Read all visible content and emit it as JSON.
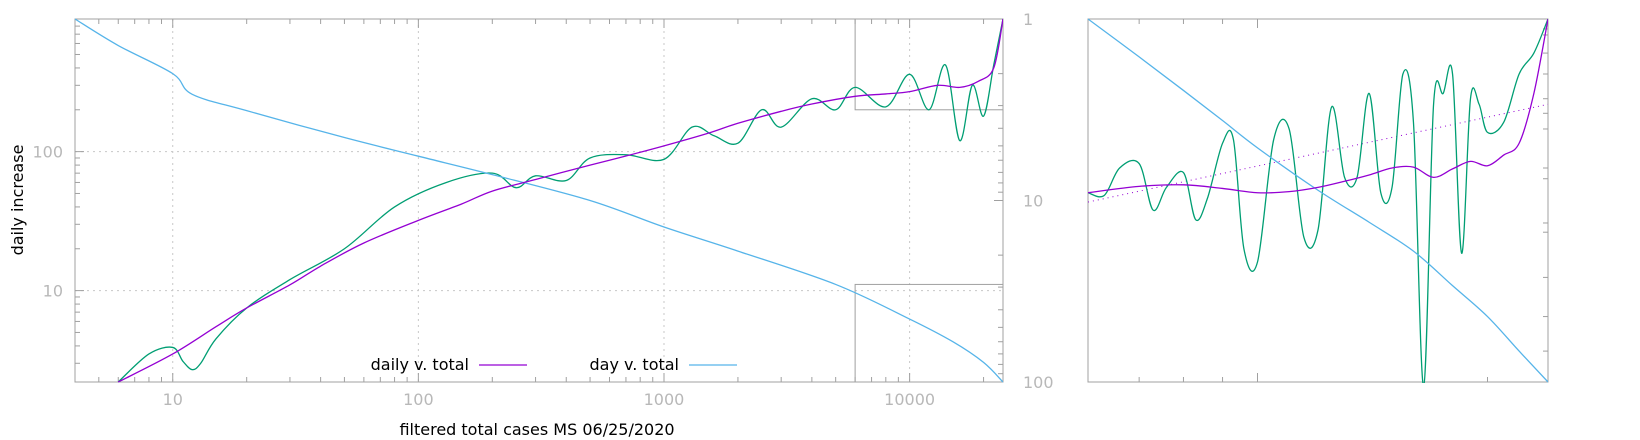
{
  "chart_data": [
    {
      "type": "line",
      "panel": "main",
      "xlabel": "filtered total cases MS 06/25/2020",
      "ylabel": "daily increase",
      "x_scale": "log",
      "y_scale": "log",
      "y2_scale": "log",
      "y2_reversed": true,
      "xlim": [
        4,
        24000
      ],
      "ylim": [
        2.2,
        900
      ],
      "y2lim": [
        1,
        100
      ],
      "x_ticks": [
        "10",
        "100",
        "1000",
        "10000"
      ],
      "y_ticks": [
        "10",
        "100"
      ],
      "y2_ticks": [
        "1",
        "10",
        "100"
      ],
      "grid": true,
      "legend": "bottom-center",
      "colors": {
        "daily": "#9400d3",
        "raw": "#009e73",
        "day": "#56b4e9",
        "axis": "#a0a0a0",
        "grid": "#c8c8c8",
        "tick_label": "#b8b8b8"
      },
      "series": [
        {
          "name": "daily v. total",
          "axis": "left",
          "x": [
            6,
            10,
            15,
            20,
            30,
            40,
            60,
            100,
            150,
            200,
            300,
            500,
            700,
            1000,
            1500,
            2000,
            3000,
            4000,
            6000,
            8000,
            10000,
            13000,
            16000,
            19000,
            22000,
            24000
          ],
          "y": [
            2.2,
            3.5,
            5.5,
            7.5,
            11,
            15,
            22,
            32,
            42,
            52,
            63,
            80,
            93,
            110,
            135,
            160,
            195,
            220,
            250,
            260,
            270,
            300,
            290,
            320,
            400,
            900
          ]
        },
        {
          "axis": "left",
          "x": [
            6,
            8,
            10,
            11,
            12,
            13,
            15,
            20,
            30,
            50,
            80,
            130,
            200,
            250,
            300,
            400,
            500,
            700,
            1000,
            1300,
            1600,
            2000,
            2500,
            3000,
            4000,
            5000,
            6000,
            8000,
            10000,
            12000,
            14000,
            16000,
            18000,
            20000,
            22000,
            24000
          ],
          "y": [
            2.2,
            3.5,
            3.9,
            3.1,
            2.7,
            3.0,
            4.5,
            7.5,
            12,
            20,
            40,
            60,
            70,
            55,
            67,
            62,
            90,
            95,
            88,
            150,
            130,
            115,
            200,
            150,
            240,
            200,
            290,
            210,
            360,
            200,
            420,
            120,
            300,
            180,
            420,
            900
          ]
        },
        {
          "name": "day v. total",
          "axis": "right",
          "x": [
            4,
            6,
            10,
            12,
            20,
            50,
            100,
            200,
            500,
            1000,
            2000,
            5000,
            10000,
            15000,
            20000,
            24000
          ],
          "y2": [
            1,
            1.4,
            2.0,
            2.6,
            3.2,
            4.5,
            5.7,
            7.2,
            10,
            14,
            19,
            29,
            45,
            60,
            78,
            100
          ]
        }
      ]
    },
    {
      "type": "line",
      "panel": "inset",
      "title": "",
      "x_scale": "log",
      "y_scale": "log",
      "xlim": [
        6000,
        24000
      ],
      "series": [
        {
          "axis": "left",
          "x": [
            6000,
            7000,
            8000,
            9000,
            10000,
            11000,
            12000,
            13000,
            14000,
            15000,
            16000,
            17000,
            18000,
            19000,
            20000,
            21000,
            22000,
            23000,
            24000
          ],
          "y": [
            250,
            262,
            265,
            258,
            250,
            252,
            260,
            272,
            285,
            300,
            302,
            280,
            298,
            315,
            305,
            330,
            360,
            520,
            900
          ]
        },
        {
          "axis": "left",
          "x": [
            6000,
            6300,
            6600,
            7000,
            7300,
            7600,
            8000,
            8300,
            8600,
            9000,
            9300,
            9600,
            10000,
            10500,
            11000,
            11500,
            12000,
            12500,
            13000,
            13500,
            14000,
            14500,
            15000,
            15500,
            16000,
            16500,
            17000,
            17500,
            18000,
            18500,
            19000,
            19500,
            20000,
            21000,
            22000,
            23000,
            24000
          ],
          "y": [
            250,
            245,
            300,
            310,
            220,
            260,
            290,
            205,
            240,
            360,
            370,
            165,
            150,
            370,
            400,
            180,
            190,
            470,
            280,
            280,
            520,
            250,
            260,
            600,
            420,
            60,
            480,
            520,
            600,
            160,
            500,
            480,
            390,
            420,
            600,
            700,
            900
          ]
        },
        {
          "axis": "right",
          "x": [
            6000,
            7000,
            8000,
            9000,
            10000,
            12000,
            14000,
            16000,
            18000,
            20000,
            22000,
            24000
          ],
          "y2": [
            29,
            33,
            37,
            41,
            45,
            52,
            58,
            64,
            72,
            80,
            90,
            100
          ]
        }
      ]
    }
  ]
}
